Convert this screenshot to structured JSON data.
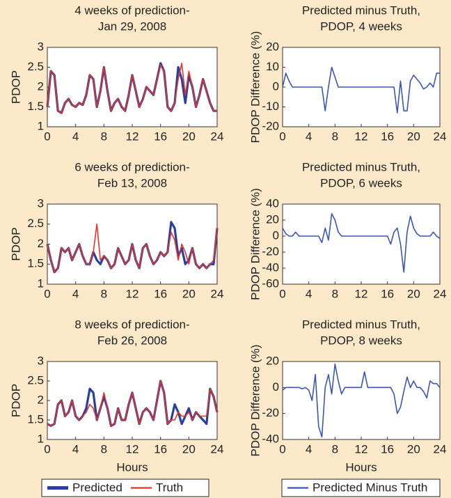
{
  "chart_data": [
    {
      "type": "line",
      "title": [
        "4 weeks of prediction-",
        "Jan 29, 2008"
      ],
      "y_label": "PDOP",
      "x": [
        0,
        0.5,
        1,
        1.5,
        2,
        2.5,
        3,
        3.5,
        4,
        4.5,
        5,
        5.5,
        6,
        6.5,
        7,
        7.5,
        8,
        8.5,
        9,
        9.5,
        10,
        10.5,
        11,
        11.5,
        12,
        12.5,
        13,
        13.5,
        14,
        14.5,
        15,
        15.5,
        16,
        16.5,
        17,
        17.5,
        18,
        18.5,
        19,
        19.5,
        20,
        20.5,
        21,
        21.5,
        22,
        22.5,
        23,
        23.5,
        24
      ],
      "series": [
        {
          "name": "Predicted",
          "color": "#2b3f9e",
          "values": [
            1.5,
            2.4,
            2.3,
            1.4,
            1.35,
            1.6,
            1.7,
            1.55,
            1.5,
            1.6,
            1.55,
            1.8,
            2.3,
            2.2,
            1.5,
            1.9,
            2.5,
            1.9,
            1.4,
            1.6,
            1.7,
            1.5,
            1.4,
            1.8,
            2.3,
            1.9,
            1.5,
            1.7,
            2.0,
            1.9,
            1.8,
            2.2,
            2.6,
            2.4,
            1.5,
            1.4,
            1.6,
            2.5,
            2.2,
            1.6,
            2.3,
            2.0,
            1.5,
            1.8,
            2.2,
            1.9,
            1.6,
            1.4,
            1.4
          ]
        },
        {
          "name": "Truth",
          "color": "#e8332a",
          "values": [
            1.5,
            2.4,
            2.3,
            1.4,
            1.35,
            1.6,
            1.7,
            1.55,
            1.5,
            1.6,
            1.55,
            1.8,
            2.3,
            2.2,
            1.5,
            1.9,
            2.5,
            1.9,
            1.4,
            1.6,
            1.7,
            1.5,
            1.4,
            1.8,
            2.3,
            1.9,
            1.5,
            1.7,
            2.0,
            1.9,
            1.8,
            2.2,
            2.55,
            2.4,
            1.5,
            1.4,
            1.6,
            2.2,
            2.6,
            1.8,
            2.4,
            2.0,
            1.5,
            1.8,
            2.2,
            1.9,
            1.6,
            1.4,
            1.4
          ]
        }
      ],
      "xlim": [
        0,
        24
      ],
      "xticks": [
        0,
        4,
        8,
        12,
        16,
        20,
        24
      ],
      "ylim": [
        1,
        3
      ],
      "yticks": [
        1,
        1.5,
        2,
        2.5,
        3
      ]
    },
    {
      "type": "line",
      "title": [
        "Predicted minus Truth,",
        "PDOP, 4 weeks"
      ],
      "y_label": "PDOP Difference (%)",
      "x": [
        0,
        0.5,
        1,
        1.5,
        2,
        2.5,
        3,
        3.5,
        4,
        4.5,
        5,
        5.5,
        6,
        6.5,
        7,
        7.5,
        8,
        8.5,
        9,
        9.5,
        10,
        10.5,
        11,
        11.5,
        12,
        12.5,
        13,
        13.5,
        14,
        14.5,
        15,
        15.5,
        16,
        16.5,
        17,
        17.5,
        18,
        18.5,
        19,
        19.5,
        20,
        20.5,
        21,
        21.5,
        22,
        22.5,
        23,
        23.5,
        24
      ],
      "series": [
        {
          "name": "Predicted Minus Truth",
          "color": "#3a55b5",
          "values": [
            0,
            7,
            3,
            0,
            0,
            0,
            0,
            0,
            0,
            0,
            0,
            0,
            0,
            -12,
            0,
            10,
            5,
            0,
            0,
            0,
            0,
            0,
            0,
            0,
            0,
            0,
            0,
            0,
            0,
            0,
            0,
            0,
            0,
            0,
            0,
            -13,
            3,
            -12,
            -12,
            3,
            6,
            4,
            2,
            -1,
            0,
            2,
            0,
            7,
            7
          ]
        }
      ],
      "xlim": [
        0,
        24
      ],
      "xticks": [
        0,
        4,
        8,
        12,
        16,
        20,
        24
      ],
      "ylim": [
        -20,
        20
      ],
      "yticks": [
        -20,
        -10,
        0,
        10,
        20
      ]
    },
    {
      "type": "line",
      "title": [
        "6 weeks of prediction-",
        "Feb 13, 2008"
      ],
      "y_label": "PDOP",
      "x": [
        0,
        0.5,
        1,
        1.5,
        2,
        2.5,
        3,
        3.5,
        4,
        4.5,
        5,
        5.5,
        6,
        6.5,
        7,
        7.5,
        8,
        8.5,
        9,
        9.5,
        10,
        10.5,
        11,
        11.5,
        12,
        12.5,
        13,
        13.5,
        14,
        14.5,
        15,
        15.5,
        16,
        16.5,
        17,
        17.5,
        18,
        18.5,
        19,
        19.5,
        20,
        20.5,
        21,
        21.5,
        22,
        22.5,
        23,
        23.5,
        24
      ],
      "series": [
        {
          "name": "Predicted",
          "color": "#2b3f9e",
          "values": [
            2.0,
            1.6,
            1.3,
            1.4,
            1.9,
            1.8,
            1.9,
            1.6,
            1.8,
            2.0,
            1.7,
            1.5,
            1.5,
            1.8,
            1.6,
            1.5,
            1.7,
            1.6,
            1.4,
            1.5,
            1.9,
            1.7,
            1.5,
            1.6,
            2.0,
            1.6,
            1.4,
            1.9,
            2.0,
            1.7,
            1.5,
            1.6,
            1.8,
            1.7,
            1.8,
            2.55,
            2.4,
            1.7,
            1.9,
            1.5,
            1.6,
            1.9,
            1.5,
            1.4,
            1.5,
            1.4,
            1.5,
            1.5,
            2.4
          ]
        },
        {
          "name": "Truth",
          "color": "#e8332a",
          "values": [
            2.0,
            1.6,
            1.3,
            1.4,
            1.9,
            1.8,
            1.9,
            1.6,
            1.8,
            2.0,
            1.7,
            1.5,
            1.5,
            1.8,
            2.5,
            1.6,
            1.7,
            1.6,
            1.4,
            1.5,
            1.9,
            1.7,
            1.5,
            1.6,
            2.0,
            1.6,
            1.4,
            1.9,
            2.0,
            1.7,
            1.5,
            1.6,
            1.8,
            1.7,
            1.8,
            2.3,
            2.1,
            1.6,
            2.0,
            1.8,
            1.5,
            1.9,
            1.5,
            1.4,
            1.5,
            1.4,
            1.5,
            1.6,
            2.4
          ]
        }
      ],
      "xlim": [
        0,
        24
      ],
      "xticks": [
        0,
        4,
        8,
        12,
        16,
        20,
        24
      ],
      "ylim": [
        1,
        3
      ],
      "yticks": [
        1,
        1.5,
        2,
        2.5,
        3
      ]
    },
    {
      "type": "line",
      "title": [
        "Predicted minus Truth,",
        "PDOP, 6 weeks"
      ],
      "y_label": "PDOP Difference (%)",
      "x": [
        0,
        0.5,
        1,
        1.5,
        2,
        2.5,
        3,
        3.5,
        4,
        4.5,
        5,
        5.5,
        6,
        6.5,
        7,
        7.5,
        8,
        8.5,
        9,
        9.5,
        10,
        10.5,
        11,
        11.5,
        12,
        12.5,
        13,
        13.5,
        14,
        14.5,
        15,
        15.5,
        16,
        16.5,
        17,
        17.5,
        18,
        18.5,
        19,
        19.5,
        20,
        20.5,
        21,
        21.5,
        22,
        22.5,
        23,
        23.5,
        24
      ],
      "series": [
        {
          "name": "Predicted Minus Truth",
          "color": "#3a55b5",
          "values": [
            10,
            3,
            0,
            0,
            5,
            0,
            0,
            0,
            0,
            0,
            0,
            0,
            -8,
            10,
            -5,
            28,
            20,
            5,
            0,
            0,
            0,
            0,
            0,
            0,
            0,
            0,
            0,
            0,
            0,
            0,
            0,
            0,
            0,
            -10,
            5,
            10,
            -10,
            -45,
            5,
            25,
            10,
            3,
            0,
            0,
            0,
            0,
            5,
            0,
            -3
          ]
        }
      ],
      "xlim": [
        0,
        24
      ],
      "xticks": [
        0,
        4,
        8,
        12,
        16,
        20,
        24
      ],
      "ylim": [
        -60,
        40
      ],
      "yticks": [
        -60,
        -40,
        -20,
        0,
        20,
        40
      ]
    },
    {
      "type": "line",
      "title": [
        "8 weeks of prediction-",
        "Feb 26, 2008"
      ],
      "y_label": "PDOP",
      "x_label": "Hours",
      "x": [
        0,
        0.5,
        1,
        1.5,
        2,
        2.5,
        3,
        3.5,
        4,
        4.5,
        5,
        5.5,
        6,
        6.5,
        7,
        7.5,
        8,
        8.5,
        9,
        9.5,
        10,
        10.5,
        11,
        11.5,
        12,
        12.5,
        13,
        13.5,
        14,
        14.5,
        15,
        15.5,
        16,
        16.5,
        17,
        17.5,
        18,
        18.5,
        19,
        19.5,
        20,
        20.5,
        21,
        21.5,
        22,
        22.5,
        23,
        23.5,
        24
      ],
      "series": [
        {
          "name": "Predicted",
          "color": "#2b3f9e",
          "values": [
            1.4,
            1.35,
            1.4,
            1.9,
            2.0,
            1.6,
            1.7,
            2.0,
            1.6,
            1.5,
            1.6,
            1.8,
            2.3,
            2.2,
            1.5,
            1.8,
            2.1,
            1.8,
            1.35,
            1.4,
            1.8,
            1.5,
            1.5,
            1.9,
            2.2,
            1.8,
            1.4,
            1.7,
            1.8,
            1.7,
            1.5,
            2.0,
            2.5,
            2.2,
            1.4,
            1.5,
            1.9,
            1.7,
            1.4,
            1.6,
            1.8,
            1.5,
            1.7,
            1.6,
            1.5,
            1.4,
            2.3,
            2.1,
            1.7
          ]
        },
        {
          "name": "Truth",
          "color": "#e8332a",
          "values": [
            1.4,
            1.35,
            1.4,
            1.9,
            2.0,
            1.6,
            1.7,
            2.0,
            1.6,
            1.5,
            1.6,
            1.7,
            1.9,
            1.8,
            1.5,
            1.8,
            2.2,
            1.8,
            1.35,
            1.4,
            1.8,
            1.5,
            1.5,
            1.9,
            2.2,
            1.8,
            1.4,
            1.7,
            1.8,
            1.7,
            1.5,
            2.0,
            2.5,
            2.2,
            1.4,
            1.5,
            1.5,
            1.7,
            1.6,
            1.6,
            1.7,
            1.5,
            1.7,
            1.6,
            1.6,
            1.6,
            2.3,
            2.1,
            1.7
          ]
        }
      ],
      "xlim": [
        0,
        24
      ],
      "xticks": [
        0,
        4,
        8,
        12,
        16,
        20,
        24
      ],
      "ylim": [
        1,
        3
      ],
      "yticks": [
        1,
        1.5,
        2,
        2.5,
        3
      ]
    },
    {
      "type": "line",
      "title": [
        "Predicted minus Truth,",
        "PDOP, 8 weeks"
      ],
      "y_label": "PDOP Difference (%)",
      "x_label": "Hours",
      "x": [
        0,
        0.5,
        1,
        1.5,
        2,
        2.5,
        3,
        3.5,
        4,
        4.5,
        5,
        5.5,
        6,
        6.5,
        7,
        7.5,
        8,
        8.5,
        9,
        9.5,
        10,
        10.5,
        11,
        11.5,
        12,
        12.5,
        13,
        13.5,
        14,
        14.5,
        15,
        15.5,
        16,
        16.5,
        17,
        17.5,
        18,
        18.5,
        19,
        19.5,
        20,
        20.5,
        21,
        21.5,
        22,
        22.5,
        23,
        23.5,
        24
      ],
      "series": [
        {
          "name": "Predicted Minus Truth",
          "color": "#3a55b5",
          "values": [
            -2,
            0,
            0,
            0,
            0,
            0,
            -1,
            0,
            -2,
            -10,
            10,
            -30,
            -38,
            0,
            10,
            -5,
            18,
            5,
            -5,
            0,
            0,
            0,
            0,
            0,
            0,
            12,
            0,
            0,
            0,
            0,
            0,
            0,
            0,
            0,
            -5,
            -20,
            -15,
            -3,
            8,
            0,
            5,
            0,
            0,
            -3,
            -8,
            5,
            3,
            3,
            0
          ]
        }
      ],
      "xlim": [
        0,
        24
      ],
      "xticks": [
        0,
        4,
        8,
        12,
        16,
        20,
        24
      ],
      "ylim": [
        -40,
        20
      ],
      "yticks": [
        -40,
        -20,
        0,
        20
      ]
    }
  ]
}
